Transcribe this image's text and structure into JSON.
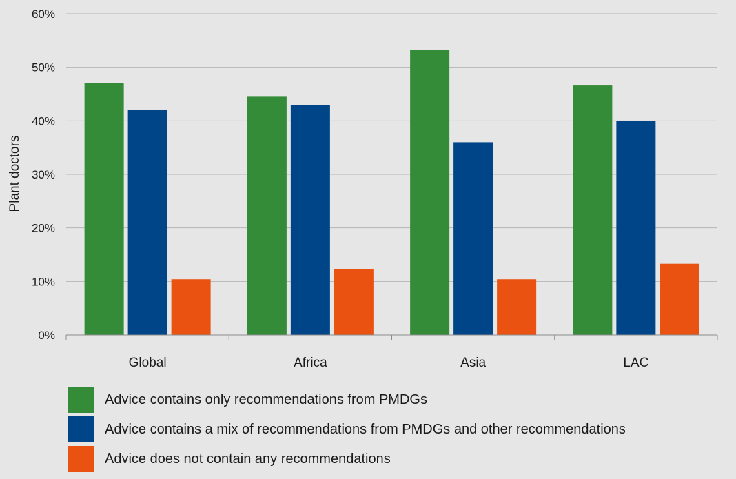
{
  "chart_data": {
    "type": "bar",
    "ylabel": "Plant doctors",
    "xlabel": "",
    "ylim": [
      0,
      60
    ],
    "yticks": [
      0,
      10,
      20,
      30,
      40,
      50,
      60
    ],
    "ytick_format": "{v}%",
    "grid": true,
    "legend_position": "bottom",
    "categories": [
      "Global",
      "Africa",
      "Asia",
      "LAC"
    ],
    "series": [
      {
        "name": "Advice contains only recommendations from PMDGs",
        "color": "#348b38",
        "values": [
          47,
          44.5,
          53.3,
          46.6
        ]
      },
      {
        "name": "Advice contains a mix of recommendations from PMDGs and other recommendations",
        "color": "#004587",
        "values": [
          42,
          43,
          36,
          40
        ]
      },
      {
        "name": "Advice does not contain any recommendations",
        "color": "#ea5212",
        "values": [
          10.4,
          12.3,
          10.4,
          13.3
        ]
      }
    ]
  }
}
